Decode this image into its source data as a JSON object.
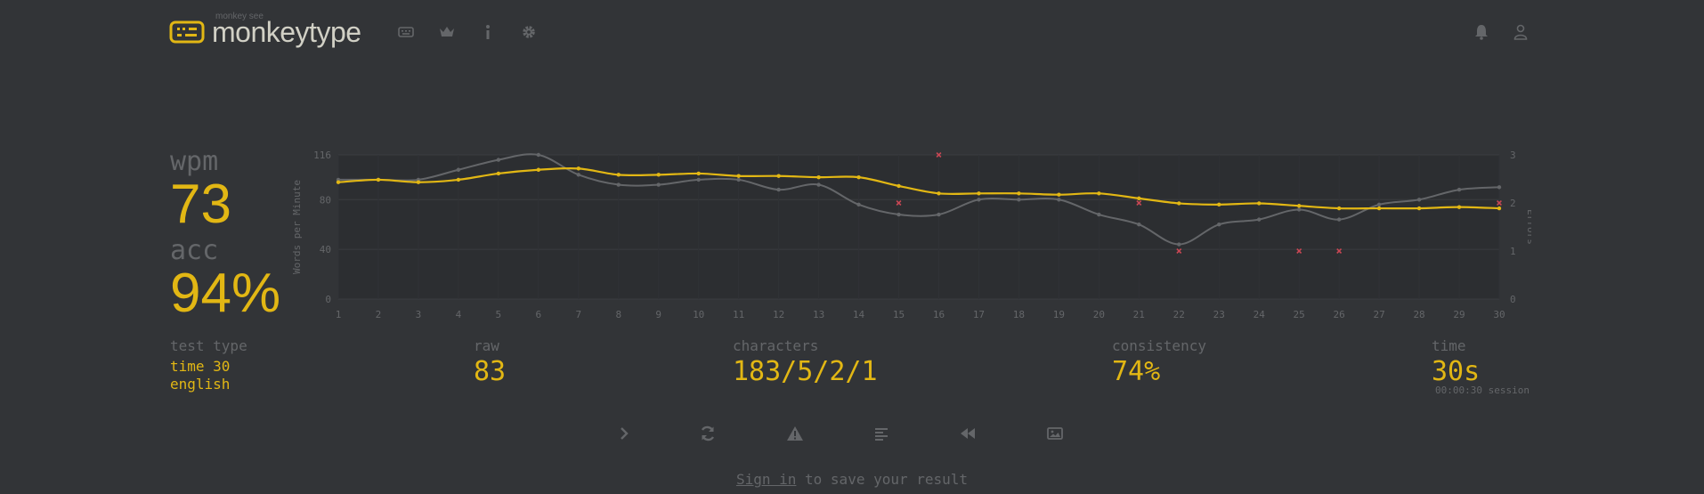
{
  "header": {
    "logo_small": "monkey see",
    "logo_text": "monkeytype",
    "nav": [
      {
        "name": "keyboard-icon"
      },
      {
        "name": "crown-icon"
      },
      {
        "name": "info-icon"
      },
      {
        "name": "gear-icon"
      }
    ],
    "right": [
      {
        "name": "bell-icon"
      },
      {
        "name": "user-icon"
      }
    ]
  },
  "result": {
    "wpm_label": "wpm",
    "wpm": "73",
    "acc_label": "acc",
    "acc": "94%"
  },
  "stats": {
    "test_type_label": "test type",
    "test_type_mode": "time 30",
    "test_type_language": "english",
    "raw_label": "raw",
    "raw": "83",
    "characters_label": "characters",
    "characters": "183/5/2/1",
    "consistency_label": "consistency",
    "consistency": "74%",
    "time_label": "time",
    "time": "30s",
    "session": "00:00:30 session"
  },
  "actions": [
    {
      "name": "next-test-icon"
    },
    {
      "name": "restart-icon"
    },
    {
      "name": "warning-icon"
    },
    {
      "name": "words-history-icon"
    },
    {
      "name": "replay-icon"
    },
    {
      "name": "screenshot-icon"
    }
  ],
  "signin": {
    "link": "Sign in",
    "text": " to save your result"
  },
  "colors": {
    "background": "#323437",
    "accent": "#e2b714",
    "text": "#d1d0c5",
    "sub": "#646669",
    "error": "#ca4754"
  },
  "chart_data": {
    "type": "line",
    "ylabel": "Words per Minute",
    "y2label": "Errors",
    "x": [
      1,
      2,
      3,
      4,
      5,
      6,
      7,
      8,
      9,
      10,
      11,
      12,
      13,
      14,
      15,
      16,
      17,
      18,
      19,
      20,
      21,
      22,
      23,
      24,
      25,
      26,
      27,
      28,
      29,
      30
    ],
    "ylim": [
      0,
      116
    ],
    "yticks": [
      0,
      40,
      80,
      116
    ],
    "y2lim": [
      0,
      3
    ],
    "y2ticks": [
      0,
      1,
      2,
      3
    ],
    "grid": true,
    "series": [
      {
        "key": "wpm",
        "color": "#e2b714",
        "values": [
          94,
          96,
          94,
          96,
          101,
          104,
          105,
          100,
          100,
          101,
          99,
          99,
          98,
          98,
          91,
          85,
          85,
          85,
          84,
          85,
          81,
          77,
          76,
          77,
          75,
          73,
          73,
          73,
          74,
          73
        ]
      },
      {
        "key": "raw",
        "color": "#646669",
        "values": [
          96,
          96,
          96,
          104,
          112,
          116,
          100,
          92,
          92,
          96,
          96,
          88,
          92,
          76,
          68,
          68,
          80,
          80,
          80,
          68,
          60,
          44,
          60,
          64,
          72,
          64,
          76,
          80,
          88,
          90
        ]
      },
      {
        "key": "errors",
        "color": "#ca4754",
        "type": "scatter",
        "points": [
          [
            15,
            2
          ],
          [
            16,
            3
          ],
          [
            21,
            2
          ],
          [
            22,
            1
          ],
          [
            25,
            1
          ],
          [
            26,
            1
          ],
          [
            30,
            2
          ]
        ]
      }
    ]
  }
}
